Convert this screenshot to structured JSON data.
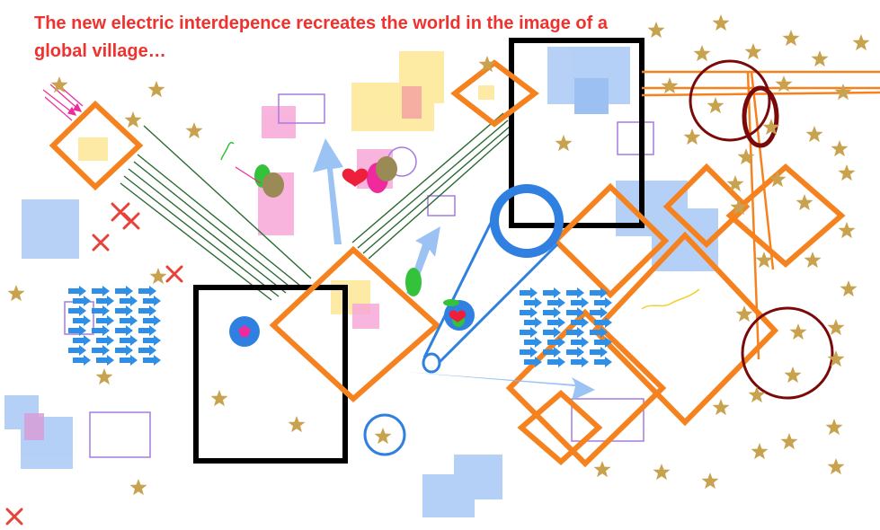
{
  "headline": "The new electric interdepence recreates the world in the image of a global village…",
  "colors": {
    "headline": "#f0322f",
    "frame": "#000000",
    "diamond": "#f5821f",
    "star": "#c8a24e",
    "blue_square": "#a9c8f5",
    "yellow_square": "#fde89a",
    "pink_square": "#f7a8d8",
    "blue_arrow": "#2f8fe6",
    "dark_red_circle": "#7a0a0a",
    "green_line": "#2b6a33",
    "red_cross": "#e8413a",
    "violet_outline": "#a57be0"
  },
  "icons": [
    "star-icon",
    "cross-icon",
    "heart-icon",
    "arrow-icon",
    "diamond-icon",
    "circle-icon"
  ]
}
